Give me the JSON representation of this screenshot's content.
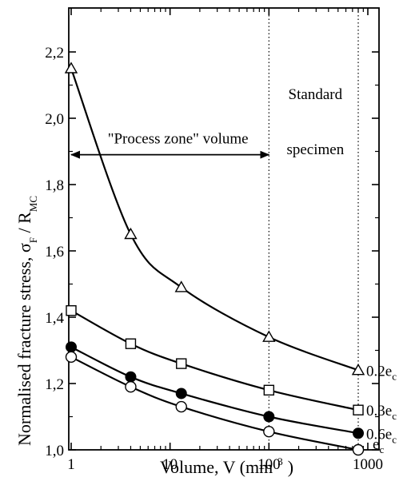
{
  "chart_data": {
    "type": "line",
    "title": "",
    "xlabel": {
      "text": "Volume,  V  (mm",
      "sup": "3",
      "tail": ")"
    },
    "ylabel": {
      "parts": [
        "Normalised fracture stress,  σ",
        "F",
        "  /  R",
        "MC"
      ]
    },
    "xscale": "log",
    "xlim": [
      1,
      1000
    ],
    "ylim": [
      1.0,
      2.3
    ],
    "xticks": [
      1,
      10,
      100,
      1000
    ],
    "xtick_labels": [
      "1",
      "10",
      "100",
      "1000"
    ],
    "yticks": [
      1.0,
      1.2,
      1.4,
      1.6,
      1.8,
      2.0,
      2.2
    ],
    "ytick_labels": [
      "1,0",
      "1,2",
      "1,4",
      "1,6",
      "1,8",
      "2,0",
      "2,2"
    ],
    "grid": false,
    "legend": "labels at right end of curves",
    "series": [
      {
        "name": "0.2e",
        "sub": "c",
        "marker": "open-triangle",
        "x": [
          1,
          4,
          13,
          100,
          800
        ],
        "y": [
          2.15,
          1.65,
          1.49,
          1.34,
          1.24
        ]
      },
      {
        "name": "0.3e",
        "sub": "c",
        "marker": "open-square",
        "x": [
          1,
          4,
          13,
          100,
          800
        ],
        "y": [
          1.42,
          1.32,
          1.26,
          1.18,
          1.12
        ]
      },
      {
        "name": "0.6e",
        "sub": "c",
        "marker": "filled-circle",
        "x": [
          1,
          4,
          13,
          100,
          800
        ],
        "y": [
          1.31,
          1.22,
          1.17,
          1.1,
          1.05
        ]
      },
      {
        "name": "e",
        "sub": "c",
        "marker": "open-circle",
        "x": [
          1,
          4,
          13,
          100,
          800
        ],
        "y": [
          1.28,
          1.19,
          1.13,
          1.055,
          1.0
        ]
      }
    ],
    "annotations": [
      {
        "text": "\"Process zone\" volume",
        "type": "double-arrow",
        "x_from": 1,
        "x_to": 100,
        "y": 1.89
      },
      {
        "text": "Standard",
        "line2": "specimen",
        "type": "label"
      }
    ],
    "reference_lines": [
      {
        "x": 100,
        "style": "dotted"
      },
      {
        "x": 800,
        "style": "dotted"
      }
    ]
  }
}
